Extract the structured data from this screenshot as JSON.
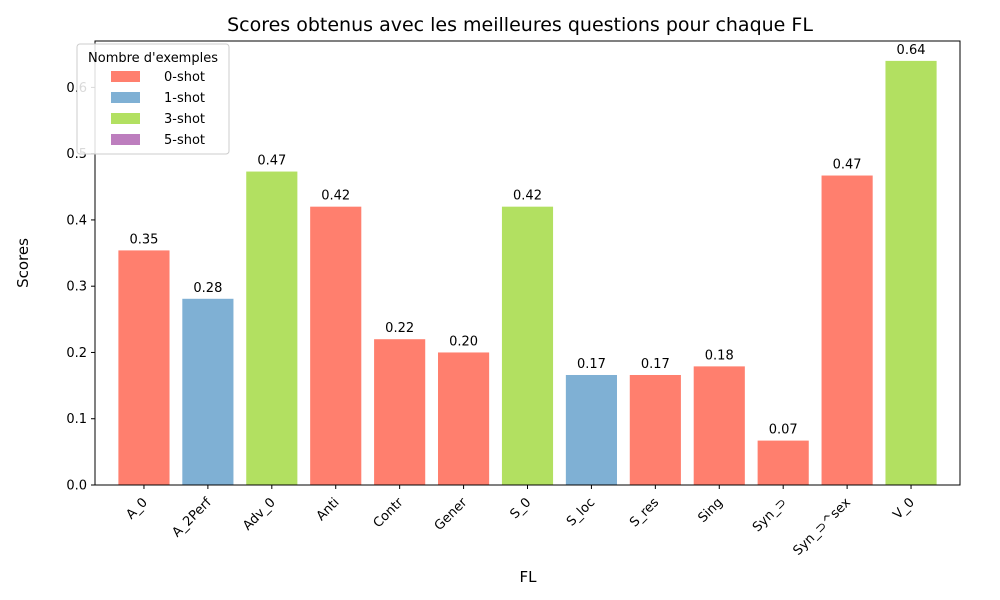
{
  "chart_data": {
    "type": "bar",
    "title": "Scores obtenus avec les meilleures questions pour chaque FL",
    "xlabel": "FL",
    "ylabel": "Scores",
    "ylim": [
      0,
      0.67
    ],
    "yticks": [
      "0.0",
      "0.1",
      "0.2",
      "0.3",
      "0.4",
      "0.5",
      "0.6"
    ],
    "grid": false,
    "categories": [
      "A_0",
      "A_2Perf",
      "Adv_0",
      "Anti",
      "Contr",
      "Gener",
      "S_0",
      "S_loc",
      "S_res",
      "Sing",
      "Syn_⊃",
      "Syn_⊃^sex",
      "V_0"
    ],
    "values": [
      0.354,
      0.281,
      0.473,
      0.42,
      0.22,
      0.2,
      0.42,
      0.166,
      0.166,
      0.179,
      0.067,
      0.467,
      0.64
    ],
    "value_labels": [
      "0.35",
      "0.28",
      "0.47",
      "0.42",
      "0.22",
      "0.20",
      "0.42",
      "0.17",
      "0.17",
      "0.18",
      "0.07",
      "0.47",
      "0.64"
    ],
    "groups": [
      "0-shot",
      "1-shot",
      "3-shot",
      "0-shot",
      "0-shot",
      "0-shot",
      "3-shot",
      "1-shot",
      "0-shot",
      "0-shot",
      "0-shot",
      "0-shot",
      "3-shot"
    ],
    "legend": {
      "title": "Nombre d'exemples",
      "placement": "top-left",
      "entries": [
        {
          "name": "0-shot",
          "color": "#FF7F6E"
        },
        {
          "name": "1-shot",
          "color": "#7FB0D4"
        },
        {
          "name": "3-shot",
          "color": "#B2E061"
        },
        {
          "name": "5-shot",
          "color": "#BD7EBE"
        }
      ]
    }
  }
}
